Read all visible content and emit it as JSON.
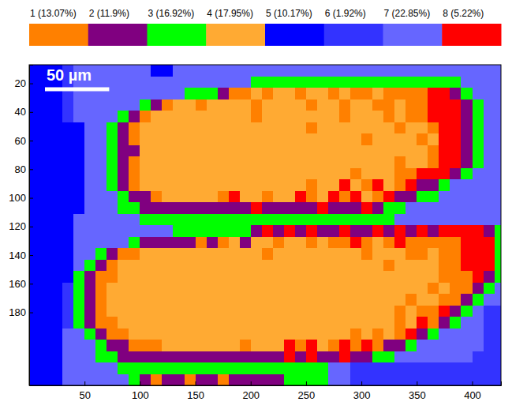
{
  "chart_data": {
    "type": "heatmap",
    "legend": "top",
    "series": [
      {
        "name": "1 (13.07%)",
        "color": "#ff8000"
      },
      {
        "name": "2 (11.9%)",
        "color": "#800080"
      },
      {
        "name": "3 (16.92%)",
        "color": "#00ff00"
      },
      {
        "name": "4 (17.95%)",
        "color": "#ffaa33"
      },
      {
        "name": "5 (10.17%)",
        "color": "#0000ff"
      },
      {
        "name": "6 (1.92%)",
        "color": "#3333ff"
      },
      {
        "name": "7 (22.85%)",
        "color": "#6666ff"
      },
      {
        "name": "8 (5.22%)",
        "color": "#ff0000"
      }
    ],
    "xlim": [
      0,
      426
    ],
    "ylim": [
      7,
      231
    ],
    "xticks": [
      50,
      100,
      150,
      200,
      250,
      300,
      350,
      400
    ],
    "yticks": [
      20,
      40,
      60,
      80,
      100,
      120,
      140,
      160,
      180
    ],
    "scale_bar": {
      "label": "50 µm",
      "length": 58
    },
    "cell_size": [
      10,
      8
    ],
    "cells": [
      [
        5,
        5,
        5,
        6,
        7,
        7,
        7,
        7,
        7,
        7,
        7,
        5,
        5,
        7,
        7,
        7,
        7,
        7,
        7,
        7,
        7,
        7,
        7,
        7,
        7,
        7,
        7,
        7,
        7,
        7,
        7,
        7,
        7,
        7,
        7,
        7,
        7,
        7,
        7,
        7,
        7,
        7,
        7
      ],
      [
        5,
        5,
        5,
        6,
        7,
        7,
        7,
        7,
        7,
        7,
        7,
        7,
        7,
        7,
        7,
        7,
        7,
        7,
        7,
        7,
        3,
        3,
        3,
        3,
        3,
        3,
        3,
        3,
        3,
        3,
        3,
        3,
        3,
        3,
        3,
        3,
        3,
        3,
        3,
        7,
        7,
        7,
        7
      ],
      [
        5,
        5,
        5,
        6,
        7,
        7,
        7,
        7,
        7,
        7,
        7,
        7,
        7,
        7,
        3,
        3,
        3,
        2,
        1,
        1,
        4,
        1,
        4,
        4,
        1,
        4,
        4,
        1,
        4,
        1,
        1,
        4,
        1,
        1,
        1,
        1,
        8,
        8,
        2,
        3,
        7,
        7,
        7
      ],
      [
        5,
        5,
        5,
        6,
        7,
        7,
        7,
        7,
        7,
        7,
        3,
        2,
        1,
        4,
        4,
        1,
        4,
        4,
        4,
        4,
        1,
        4,
        4,
        4,
        4,
        1,
        4,
        4,
        1,
        4,
        4,
        1,
        1,
        4,
        1,
        1,
        8,
        8,
        8,
        2,
        3,
        7,
        7
      ],
      [
        5,
        5,
        5,
        6,
        7,
        7,
        7,
        7,
        3,
        2,
        1,
        4,
        4,
        4,
        4,
        4,
        4,
        4,
        4,
        4,
        1,
        4,
        4,
        4,
        4,
        4,
        4,
        4,
        1,
        4,
        4,
        4,
        1,
        4,
        1,
        1,
        8,
        8,
        8,
        2,
        3,
        7,
        7
      ],
      [
        5,
        5,
        5,
        5,
        5,
        7,
        7,
        3,
        2,
        1,
        4,
        4,
        4,
        4,
        4,
        4,
        4,
        4,
        4,
        4,
        4,
        4,
        4,
        4,
        4,
        1,
        4,
        4,
        4,
        4,
        4,
        4,
        4,
        1,
        4,
        4,
        1,
        8,
        8,
        2,
        3,
        7,
        7
      ],
      [
        5,
        5,
        5,
        5,
        5,
        7,
        7,
        3,
        2,
        1,
        4,
        4,
        4,
        4,
        4,
        4,
        4,
        4,
        4,
        4,
        4,
        4,
        4,
        4,
        4,
        4,
        4,
        4,
        4,
        4,
        1,
        4,
        4,
        4,
        4,
        1,
        4,
        8,
        8,
        2,
        3,
        7,
        7
      ],
      [
        5,
        5,
        5,
        5,
        5,
        7,
        7,
        3,
        2,
        2,
        4,
        4,
        4,
        4,
        4,
        4,
        4,
        4,
        4,
        4,
        4,
        4,
        4,
        4,
        4,
        4,
        4,
        4,
        4,
        4,
        4,
        4,
        4,
        4,
        4,
        4,
        1,
        8,
        8,
        2,
        3,
        7,
        7
      ],
      [
        5,
        5,
        5,
        5,
        5,
        7,
        7,
        3,
        2,
        1,
        4,
        4,
        4,
        4,
        4,
        4,
        4,
        4,
        4,
        4,
        4,
        4,
        4,
        4,
        4,
        4,
        4,
        4,
        4,
        4,
        4,
        4,
        4,
        1,
        4,
        4,
        1,
        8,
        8,
        2,
        3,
        7,
        7
      ],
      [
        5,
        5,
        5,
        5,
        5,
        7,
        7,
        3,
        2,
        1,
        4,
        4,
        4,
        4,
        4,
        4,
        4,
        4,
        4,
        4,
        4,
        4,
        4,
        4,
        4,
        4,
        4,
        4,
        4,
        1,
        4,
        4,
        4,
        1,
        1,
        8,
        8,
        8,
        2,
        3,
        7,
        7,
        7
      ],
      [
        5,
        5,
        5,
        5,
        5,
        7,
        7,
        3,
        2,
        1,
        4,
        4,
        4,
        4,
        4,
        4,
        4,
        4,
        4,
        4,
        4,
        4,
        4,
        4,
        4,
        1,
        4,
        4,
        8,
        4,
        1,
        8,
        4,
        1,
        8,
        2,
        2,
        3,
        7,
        7,
        7,
        7,
        7
      ],
      [
        5,
        5,
        5,
        5,
        5,
        7,
        7,
        7,
        3,
        2,
        2,
        1,
        4,
        4,
        4,
        4,
        4,
        1,
        8,
        4,
        4,
        1,
        4,
        4,
        8,
        1,
        4,
        8,
        1,
        8,
        4,
        1,
        8,
        2,
        2,
        3,
        3,
        7,
        7,
        7,
        7,
        7,
        7
      ],
      [
        5,
        5,
        5,
        5,
        5,
        7,
        7,
        7,
        3,
        3,
        2,
        2,
        2,
        2,
        2,
        2,
        2,
        2,
        2,
        2,
        8,
        2,
        2,
        2,
        2,
        2,
        8,
        2,
        2,
        2,
        8,
        2,
        3,
        3,
        7,
        7,
        7,
        7,
        7,
        7,
        7,
        7,
        7
      ],
      [
        5,
        5,
        5,
        5,
        7,
        7,
        7,
        7,
        7,
        7,
        3,
        3,
        3,
        3,
        3,
        3,
        3,
        3,
        3,
        3,
        3,
        3,
        3,
        3,
        3,
        3,
        3,
        3,
        3,
        3,
        3,
        3,
        3,
        7,
        7,
        7,
        7,
        7,
        7,
        7,
        7,
        7,
        7
      ],
      [
        5,
        5,
        5,
        5,
        7,
        7,
        7,
        7,
        7,
        7,
        7,
        7,
        7,
        3,
        3,
        3,
        3,
        3,
        3,
        3,
        2,
        8,
        2,
        8,
        2,
        8,
        2,
        2,
        8,
        2,
        2,
        8,
        2,
        8,
        2,
        8,
        2,
        8,
        8,
        8,
        8,
        2,
        3
      ],
      [
        5,
        5,
        5,
        5,
        7,
        7,
        7,
        7,
        7,
        3,
        2,
        2,
        2,
        2,
        2,
        1,
        2,
        1,
        4,
        2,
        4,
        4,
        1,
        4,
        4,
        1,
        4,
        1,
        1,
        8,
        1,
        4,
        1,
        8,
        1,
        1,
        1,
        1,
        1,
        8,
        8,
        8,
        3
      ],
      [
        5,
        5,
        5,
        5,
        7,
        7,
        3,
        2,
        1,
        1,
        4,
        4,
        4,
        4,
        4,
        4,
        4,
        4,
        4,
        4,
        4,
        1,
        4,
        4,
        4,
        4,
        4,
        4,
        4,
        4,
        1,
        4,
        4,
        4,
        1,
        1,
        4,
        1,
        1,
        8,
        8,
        8,
        3
      ],
      [
        5,
        5,
        5,
        5,
        7,
        3,
        2,
        1,
        4,
        4,
        4,
        4,
        4,
        4,
        4,
        4,
        4,
        4,
        4,
        4,
        4,
        4,
        4,
        4,
        4,
        4,
        4,
        4,
        4,
        4,
        4,
        4,
        1,
        4,
        4,
        4,
        4,
        1,
        1,
        8,
        8,
        8,
        3
      ],
      [
        5,
        5,
        5,
        5,
        3,
        2,
        1,
        1,
        4,
        4,
        4,
        4,
        4,
        4,
        4,
        4,
        4,
        4,
        4,
        4,
        4,
        4,
        4,
        4,
        4,
        4,
        4,
        4,
        4,
        4,
        4,
        4,
        4,
        4,
        4,
        4,
        4,
        1,
        1,
        1,
        8,
        2,
        3
      ],
      [
        5,
        5,
        5,
        6,
        3,
        2,
        1,
        4,
        4,
        4,
        4,
        4,
        4,
        4,
        4,
        4,
        4,
        4,
        4,
        4,
        4,
        4,
        4,
        4,
        4,
        4,
        4,
        4,
        4,
        4,
        4,
        4,
        4,
        4,
        4,
        4,
        1,
        4,
        1,
        1,
        2,
        3,
        7
      ],
      [
        5,
        5,
        5,
        6,
        3,
        2,
        1,
        4,
        4,
        4,
        4,
        4,
        4,
        4,
        4,
        4,
        4,
        4,
        4,
        4,
        4,
        4,
        4,
        4,
        4,
        4,
        4,
        4,
        4,
        4,
        4,
        4,
        4,
        4,
        1,
        4,
        4,
        1,
        1,
        2,
        3,
        7,
        7
      ],
      [
        5,
        5,
        5,
        6,
        3,
        2,
        1,
        4,
        4,
        4,
        4,
        4,
        4,
        4,
        4,
        4,
        4,
        4,
        4,
        4,
        4,
        4,
        4,
        4,
        4,
        4,
        4,
        4,
        4,
        4,
        4,
        4,
        4,
        1,
        4,
        1,
        1,
        8,
        2,
        3,
        7,
        6,
        6
      ],
      [
        5,
        5,
        5,
        6,
        3,
        2,
        1,
        1,
        4,
        4,
        4,
        4,
        4,
        4,
        4,
        4,
        4,
        4,
        4,
        4,
        4,
        4,
        4,
        4,
        4,
        4,
        4,
        4,
        4,
        4,
        4,
        4,
        4,
        1,
        4,
        8,
        1,
        2,
        3,
        7,
        7,
        6,
        6
      ],
      [
        5,
        5,
        5,
        7,
        7,
        3,
        2,
        1,
        1,
        4,
        4,
        4,
        4,
        4,
        4,
        4,
        4,
        4,
        4,
        4,
        4,
        4,
        4,
        4,
        4,
        4,
        4,
        4,
        4,
        1,
        4,
        1,
        4,
        1,
        8,
        2,
        3,
        7,
        7,
        7,
        7,
        6,
        6
      ],
      [
        5,
        5,
        5,
        7,
        7,
        7,
        3,
        2,
        2,
        1,
        1,
        1,
        4,
        4,
        4,
        4,
        4,
        4,
        4,
        1,
        4,
        4,
        4,
        8,
        1,
        8,
        4,
        1,
        8,
        1,
        8,
        1,
        2,
        2,
        3,
        7,
        7,
        7,
        7,
        7,
        7,
        6,
        6
      ],
      [
        5,
        5,
        5,
        7,
        7,
        7,
        3,
        3,
        2,
        2,
        2,
        2,
        2,
        2,
        2,
        2,
        2,
        2,
        2,
        2,
        2,
        2,
        2,
        8,
        2,
        8,
        2,
        2,
        8,
        2,
        2,
        3,
        3,
        7,
        7,
        7,
        7,
        7,
        7,
        7,
        6,
        6,
        6
      ],
      [
        5,
        5,
        5,
        7,
        7,
        7,
        7,
        7,
        3,
        3,
        3,
        3,
        3,
        3,
        3,
        3,
        3,
        3,
        3,
        3,
        3,
        3,
        3,
        3,
        3,
        3,
        3,
        7,
        7,
        6,
        6,
        6,
        6,
        6,
        6,
        6,
        6,
        6,
        6,
        6,
        6,
        6,
        6
      ],
      [
        5,
        5,
        5,
        7,
        7,
        7,
        7,
        7,
        7,
        3,
        2,
        1,
        2,
        2,
        1,
        2,
        2,
        1,
        2,
        2,
        2,
        2,
        2,
        3,
        3,
        3,
        3,
        7,
        7,
        6,
        6,
        6,
        6,
        6,
        6,
        6,
        6,
        6,
        6,
        6,
        6,
        6,
        6
      ]
    ]
  }
}
